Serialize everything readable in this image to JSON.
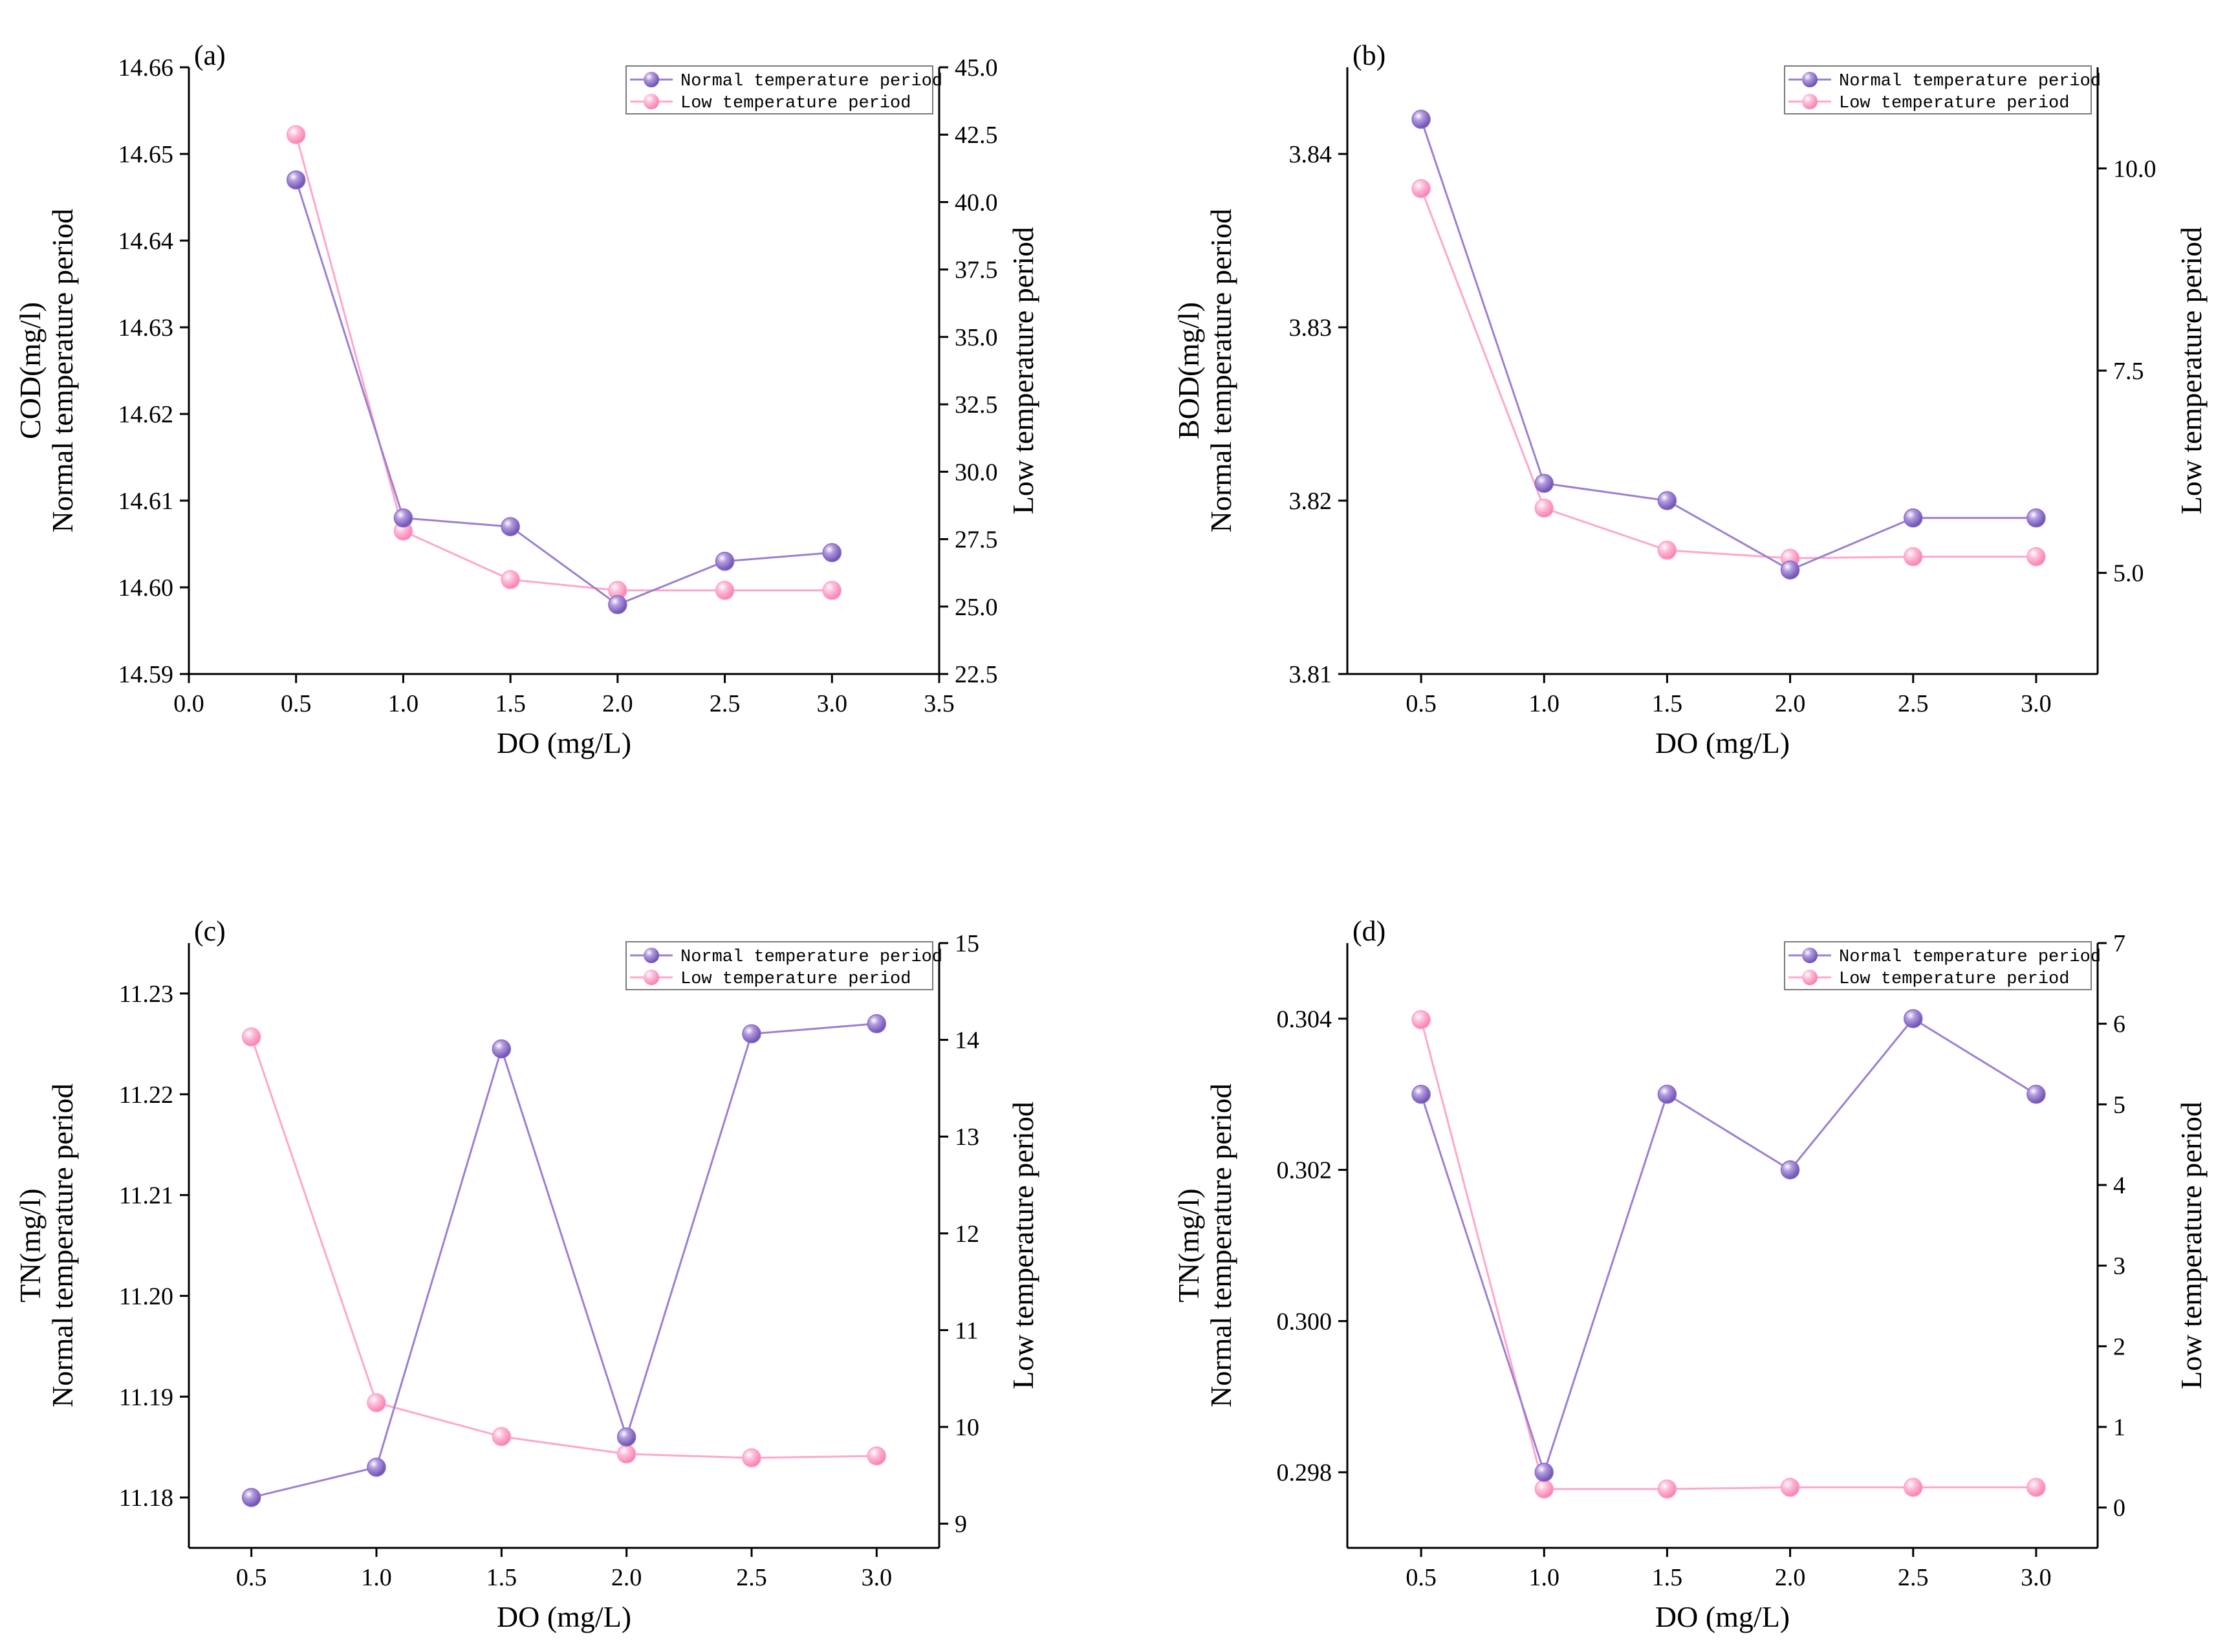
{
  "colors": {
    "normal": "#9c7fd0",
    "normal_marker": "#8a6cc6",
    "low": "#ffa6cc",
    "low_marker": "#ff9fc6"
  },
  "chart_data": [
    {
      "type": "line",
      "label": "(a)",
      "xlabel": "DO (mg/L)",
      "ylabel_lines": [
        "COD(mg/l)",
        "Normal temperature period"
      ],
      "y2label": "Low temperature period",
      "xlim": [
        0.0,
        3.5
      ],
      "xticks": [
        0.0,
        0.5,
        1.0,
        1.5,
        2.0,
        2.5,
        3.0,
        3.5
      ],
      "xtick_labels": [
        "0.0",
        "0.5",
        "1.0",
        "1.5",
        "2.0",
        "2.5",
        "3.0",
        "3.5"
      ],
      "ylim": [
        14.59,
        14.66
      ],
      "yticks": [
        14.59,
        14.6,
        14.61,
        14.62,
        14.63,
        14.64,
        14.65,
        14.66
      ],
      "ytick_labels": [
        "14.59",
        "14.60",
        "14.61",
        "14.62",
        "14.63",
        "14.64",
        "14.65",
        "14.66"
      ],
      "y2lim": [
        22.5,
        45.0
      ],
      "y2ticks": [
        22.5,
        25,
        27.5,
        30,
        32.5,
        35,
        37.5,
        40,
        42.5,
        45
      ],
      "y2tick_labels": [
        "22.5",
        "25.0",
        "27.5",
        "30.0",
        "32.5",
        "35.0",
        "37.5",
        "40.0",
        "42.5",
        "45.0"
      ],
      "series": [
        {
          "name": "Normal temperature period",
          "axis": "left",
          "x": [
            0.5,
            1.0,
            1.5,
            2.0,
            2.5,
            3.0
          ],
          "values": [
            14.647,
            14.608,
            14.607,
            14.598,
            14.603,
            14.604
          ]
        },
        {
          "name": "Low temperature period",
          "axis": "right",
          "x": [
            0.5,
            1.0,
            1.5,
            2.0,
            2.5,
            3.0
          ],
          "values": [
            42.5,
            27.8,
            26.0,
            25.6,
            25.6,
            25.6
          ]
        }
      ]
    },
    {
      "type": "line",
      "label": "(b)",
      "xlabel": "DO (mg/L)",
      "ylabel_lines": [
        "BOD(mg/l)",
        "Normal temperature period"
      ],
      "y2label": "Low temperature period",
      "xlim": [
        0.2,
        3.25
      ],
      "xticks": [
        0.5,
        1.0,
        1.5,
        2.0,
        2.5,
        3.0
      ],
      "xtick_labels": [
        "0.5",
        "1.0",
        "1.5",
        "2.0",
        "2.5",
        "3.0"
      ],
      "ylim": [
        3.81,
        3.845
      ],
      "yticks": [
        3.81,
        3.82,
        3.83,
        3.84
      ],
      "ytick_labels": [
        "3.81",
        "3.82",
        "3.83",
        "3.84"
      ],
      "y2lim": [
        3.75,
        11.25
      ],
      "y2ticks": [
        5.0,
        7.5,
        10.0
      ],
      "y2tick_labels": [
        "5.0",
        "7.5",
        "10.0"
      ],
      "series": [
        {
          "name": "Normal temperature period",
          "axis": "left",
          "x": [
            0.5,
            1.0,
            1.5,
            2.0,
            2.5,
            3.0
          ],
          "values": [
            3.842,
            3.821,
            3.82,
            3.816,
            3.819,
            3.819
          ]
        },
        {
          "name": "Low temperature period",
          "axis": "right",
          "x": [
            0.5,
            1.0,
            1.5,
            2.0,
            2.5,
            3.0
          ],
          "values": [
            9.75,
            5.8,
            5.28,
            5.18,
            5.2,
            5.2
          ]
        }
      ]
    },
    {
      "type": "line",
      "label": "(c)",
      "xlabel": "DO (mg/L)",
      "ylabel_lines": [
        "TN(mg/l)",
        "Normal temperature period"
      ],
      "y2label": "Low temperature period",
      "xlim": [
        0.25,
        3.25
      ],
      "xticks": [
        0.5,
        1.0,
        1.5,
        2.0,
        2.5,
        3.0
      ],
      "xtick_labels": [
        "0.5",
        "1.0",
        "1.5",
        "2.0",
        "2.5",
        "3.0"
      ],
      "ylim": [
        11.175,
        11.235
      ],
      "yticks": [
        11.18,
        11.19,
        11.2,
        11.21,
        11.22,
        11.23
      ],
      "ytick_labels": [
        "11.18",
        "11.19",
        "11.20",
        "11.21",
        "11.22",
        "11.23"
      ],
      "y2lim": [
        8.75,
        15.0
      ],
      "y2ticks": [
        9,
        10,
        11,
        12,
        13,
        14,
        15
      ],
      "y2tick_labels": [
        "9",
        "10",
        "11",
        "12",
        "13",
        "14",
        "15"
      ],
      "series": [
        {
          "name": "Normal temperature period",
          "axis": "left",
          "x": [
            0.5,
            1.0,
            1.5,
            2.0,
            2.5,
            3.0
          ],
          "values": [
            11.18,
            11.183,
            11.2245,
            11.186,
            11.226,
            11.227
          ]
        },
        {
          "name": "Low temperature period",
          "axis": "right",
          "x": [
            0.5,
            1.0,
            1.5,
            2.0,
            2.5,
            3.0
          ],
          "values": [
            14.03,
            10.25,
            9.9,
            9.72,
            9.68,
            9.7
          ]
        }
      ]
    },
    {
      "type": "line",
      "label": "(d)",
      "xlabel": "DO (mg/L)",
      "ylabel_lines": [
        "TN(mg/l)",
        "Normal temperature period"
      ],
      "y2label": "Low temperature period",
      "xlim": [
        0.2,
        3.25
      ],
      "xticks": [
        0.5,
        1.0,
        1.5,
        2.0,
        2.5,
        3.0
      ],
      "xtick_labels": [
        "0.5",
        "1.0",
        "1.5",
        "2.0",
        "2.5",
        "3.0"
      ],
      "ylim": [
        0.297,
        0.305
      ],
      "yticks": [
        0.298,
        0.3,
        0.302,
        0.304
      ],
      "ytick_labels": [
        "0.298",
        "0.300",
        "0.302",
        "0.304"
      ],
      "y2lim": [
        -0.5,
        7.0
      ],
      "y2ticks": [
        0,
        1,
        2,
        3,
        4,
        5,
        6,
        7
      ],
      "y2tick_labels": [
        "0",
        "1",
        "2",
        "3",
        "4",
        "5",
        "6",
        "7"
      ],
      "series": [
        {
          "name": "Normal temperature period",
          "axis": "left",
          "x": [
            0.5,
            1.0,
            1.5,
            2.0,
            2.5,
            3.0
          ],
          "values": [
            0.303,
            0.298,
            0.303,
            0.302,
            0.304,
            0.303
          ]
        },
        {
          "name": "Low temperature period",
          "axis": "right",
          "x": [
            0.5,
            1.0,
            1.5,
            2.0,
            2.5,
            3.0
          ],
          "values": [
            6.05,
            0.23,
            0.23,
            0.25,
            0.25,
            0.25
          ]
        }
      ]
    }
  ]
}
